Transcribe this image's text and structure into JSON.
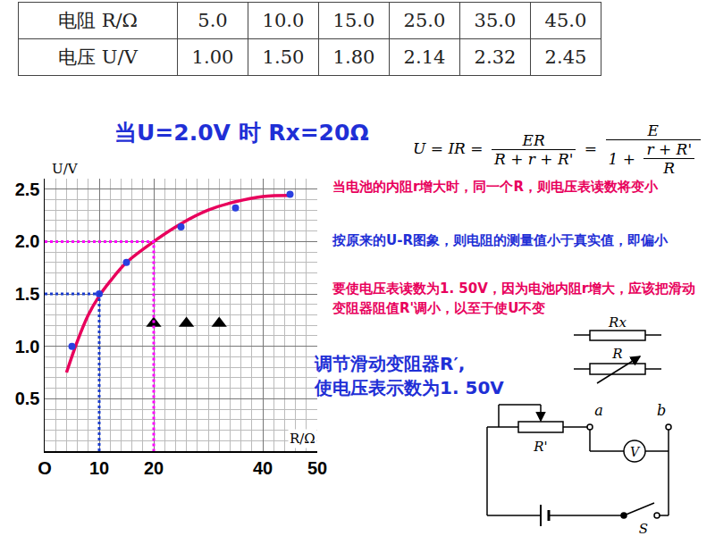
{
  "table": {
    "rows": [
      [
        "电阻 R/Ω",
        "5.0",
        "10.0",
        "15.0",
        "25.0",
        "35.0",
        "45.0"
      ],
      [
        "电压 U/V",
        "1.00",
        "1.50",
        "1.80",
        "2.14",
        "2.32",
        "2.45"
      ]
    ]
  },
  "title": "当U=2.0V 时 Rx=20Ω",
  "formula": {
    "lhs": "U = IR =",
    "frac1": {
      "num": "ER",
      "den": "R + r + R'"
    },
    "eq": "=",
    "frac2": {
      "num": "E",
      "den_prefix": "1 +",
      "den_frac": {
        "num": "r + R'",
        "den": "R"
      }
    }
  },
  "notes": [
    {
      "text": "当电池的内阻r增大时，同一个R，则电压表读数将变小",
      "color": "#e8005c"
    },
    {
      "text": "按原来的U-R图象，则电阻的测量值小于真实值，即偏小",
      "color": "#1f2fd6"
    },
    {
      "text": "要使电压表读数为1. 50V，因为电池内阻r增大，应该把滑动变阻器阻值R'调小，以至于使U不变",
      "color": "#e8005c"
    }
  ],
  "instruction": {
    "lines": [
      "调节滑动变阻器R′,",
      "使电压表示数为1. 50V"
    ],
    "color": "#1f2fd6"
  },
  "circuit": {
    "labels": {
      "rx": "Rx",
      "r": "R",
      "a": "a",
      "b": "b",
      "rp": "R'",
      "v": "V",
      "s": "S"
    }
  },
  "chart_data": {
    "type": "scatter",
    "x_label": "R/Ω",
    "y_label": "U/V",
    "xlim": [
      0,
      50
    ],
    "ylim": [
      0,
      2.6
    ],
    "xticks": [
      {
        "value": 0,
        "label": "O"
      },
      10,
      20,
      40,
      50
    ],
    "yticks": [
      0.5,
      {
        "value": 1,
        "label": "1.0"
      },
      1.5,
      {
        "value": 2,
        "label": "2.0"
      },
      2.5
    ],
    "grid": true,
    "series": [
      {
        "type": "line",
        "color": "#e8005c",
        "line_style": "solid",
        "x": [
          4,
          6,
          8,
          10,
          12,
          15,
          20,
          25,
          30,
          35,
          40,
          45
        ],
        "values": [
          0.75,
          1.05,
          1.3,
          1.48,
          1.62,
          1.8,
          2.0,
          2.17,
          2.3,
          2.38,
          2.43,
          2.44
        ]
      },
      {
        "type": "scatter",
        "color": "#2a3fe0",
        "marker": "circle",
        "x": [
          5,
          10,
          15,
          25,
          35,
          45
        ],
        "values": [
          1.0,
          1.5,
          1.8,
          2.14,
          2.32,
          2.45
        ]
      },
      {
        "type": "scatter",
        "color": "#000000",
        "marker": "triangle-up",
        "x": [
          20,
          26,
          32
        ],
        "values": [
          1.22,
          1.22,
          1.22
        ]
      },
      {
        "type": "line",
        "color": "#1a3ccc",
        "line_style": "dot",
        "x": [
          0,
          10,
          10
        ],
        "values": [
          1.5,
          1.5,
          0
        ]
      },
      {
        "type": "line",
        "color": "#ff00ff",
        "line_style": "dot",
        "x": [
          0,
          20,
          20
        ],
        "values": [
          2.0,
          2.0,
          0
        ]
      }
    ]
  }
}
